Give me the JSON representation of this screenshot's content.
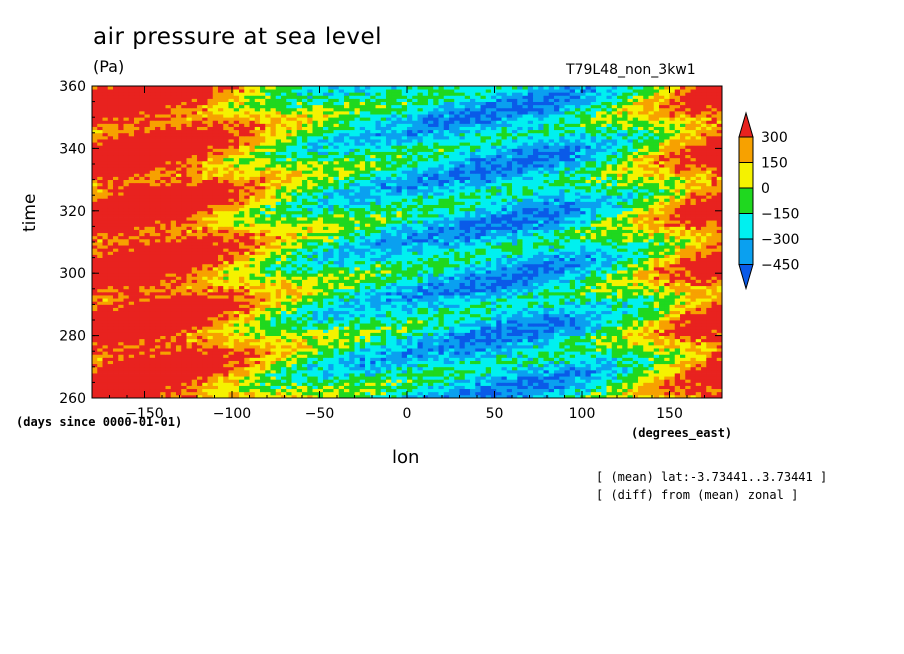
{
  "title": "air pressure at sea level",
  "units": "(Pa)",
  "run_name": "T79L48_non_3kw1",
  "notes": [
    "[ (mean) lat:-3.73441..3.73441 ]",
    "[ (diff) from (mean) zonal ]"
  ],
  "chart_data": {
    "type": "heatmap",
    "title": "air pressure at sea level",
    "units": "(Pa)",
    "xlabel": "lon",
    "xunit": "(degrees_east)",
    "ylabel": "time",
    "yunit": "(days since 0000-01-01)",
    "xlim": [
      -180,
      180
    ],
    "ylim": [
      260,
      360
    ],
    "xticks": [
      -150,
      -100,
      -50,
      0,
      50,
      100,
      150
    ],
    "yticks": [
      260,
      280,
      300,
      320,
      340,
      360
    ],
    "colorbar": {
      "levels": [
        300,
        150,
        0,
        -150,
        -300,
        -450
      ],
      "colors": [
        "#e8221f",
        "#f7a100",
        "#f5f200",
        "#1fd81f",
        "#00f0f0",
        "#0aa0f0",
        "#0a5ae8"
      ],
      "extend": "both"
    },
    "pattern": "positive anomalies (red) centered near 150E-180-100W, negative anomalies (blue) centered near 0-80E, with eastward-propagating bands over time"
  }
}
